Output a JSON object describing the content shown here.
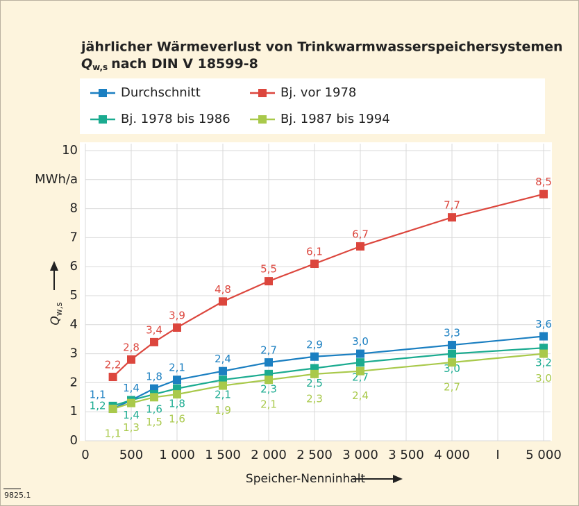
{
  "chart_data": {
    "type": "line",
    "title": "jährlicher Wärmeverlust von Trinkwarmwasserspeichersystemen",
    "subtitle_symbol": "Q",
    "subtitle_subscript": "w,s",
    "subtitle": "nach DIN V 18599-8",
    "xlabel": "Speicher-Nenninhalt",
    "ylabel_symbol": "Q",
    "ylabel_subscript": "w,s",
    "figure_id": "9825.1",
    "x": [
      300,
      500,
      750,
      1000,
      1500,
      2000,
      2500,
      3000,
      4000,
      5000
    ],
    "series": [
      {
        "name": "Durchschnitt",
        "color": "#1b7fc1",
        "values": [
          1.1,
          1.4,
          1.8,
          2.1,
          2.4,
          2.7,
          2.9,
          3.0,
          3.3,
          3.6
        ],
        "value_labels": [
          "1,1",
          "1,4",
          "1,8",
          "2,1",
          "2,4",
          "2,7",
          "2,9",
          "3,0",
          "3,3",
          "3,6"
        ]
      },
      {
        "name": "Bj. vor 1978",
        "color": "#dc463d",
        "values": [
          2.2,
          2.8,
          3.4,
          3.9,
          4.8,
          5.5,
          6.1,
          6.7,
          7.7,
          8.5
        ],
        "value_labels": [
          "2,2",
          "2,8",
          "3,4",
          "3,9",
          "4,8",
          "5,5",
          "6,1",
          "6,7",
          "7,7",
          "8,5"
        ]
      },
      {
        "name": "Bj. 1978 bis 1986",
        "color": "#1bab90",
        "values": [
          1.2,
          1.4,
          1.6,
          1.8,
          2.1,
          2.3,
          2.5,
          2.7,
          3.0,
          3.2
        ],
        "value_labels": [
          "1,2",
          "1,4",
          "1,6",
          "1,8",
          "2,1",
          "2,3",
          "2,5",
          "2,7",
          "3,0",
          "3,2"
        ]
      },
      {
        "name": "Bj. 1987 bis 1994",
        "color": "#a9c94b",
        "values": [
          1.1,
          1.3,
          1.5,
          1.6,
          1.9,
          2.1,
          2.3,
          2.4,
          2.7,
          3.0
        ],
        "value_labels": [
          "1,1",
          "1,3",
          "1,5",
          "1,6",
          "1,9",
          "2,1",
          "2,3",
          "2,4",
          "2,7",
          "3,0"
        ]
      }
    ],
    "xlim": [
      0,
      5000
    ],
    "xticks": [
      0,
      500,
      {
        "value": 1000,
        "label": "1 000"
      },
      {
        "value": 1500,
        "label": "1 500"
      },
      {
        "value": 2000,
        "label": "2 000"
      },
      {
        "value": 2500,
        "label": "2 500"
      },
      {
        "value": 3000,
        "label": "3 000"
      },
      {
        "value": 3500,
        "label": "3 500"
      },
      {
        "value": 4000,
        "label": "4 000"
      },
      {
        "value": 4500,
        "label": "I"
      },
      {
        "value": 5000,
        "label": "5 000"
      }
    ],
    "ylim": [
      0,
      10
    ],
    "yticks": [
      0,
      1,
      2,
      3,
      4,
      5,
      6,
      7,
      8,
      {
        "value": 9,
        "label": "MWh/a"
      },
      10
    ],
    "grid": true
  }
}
